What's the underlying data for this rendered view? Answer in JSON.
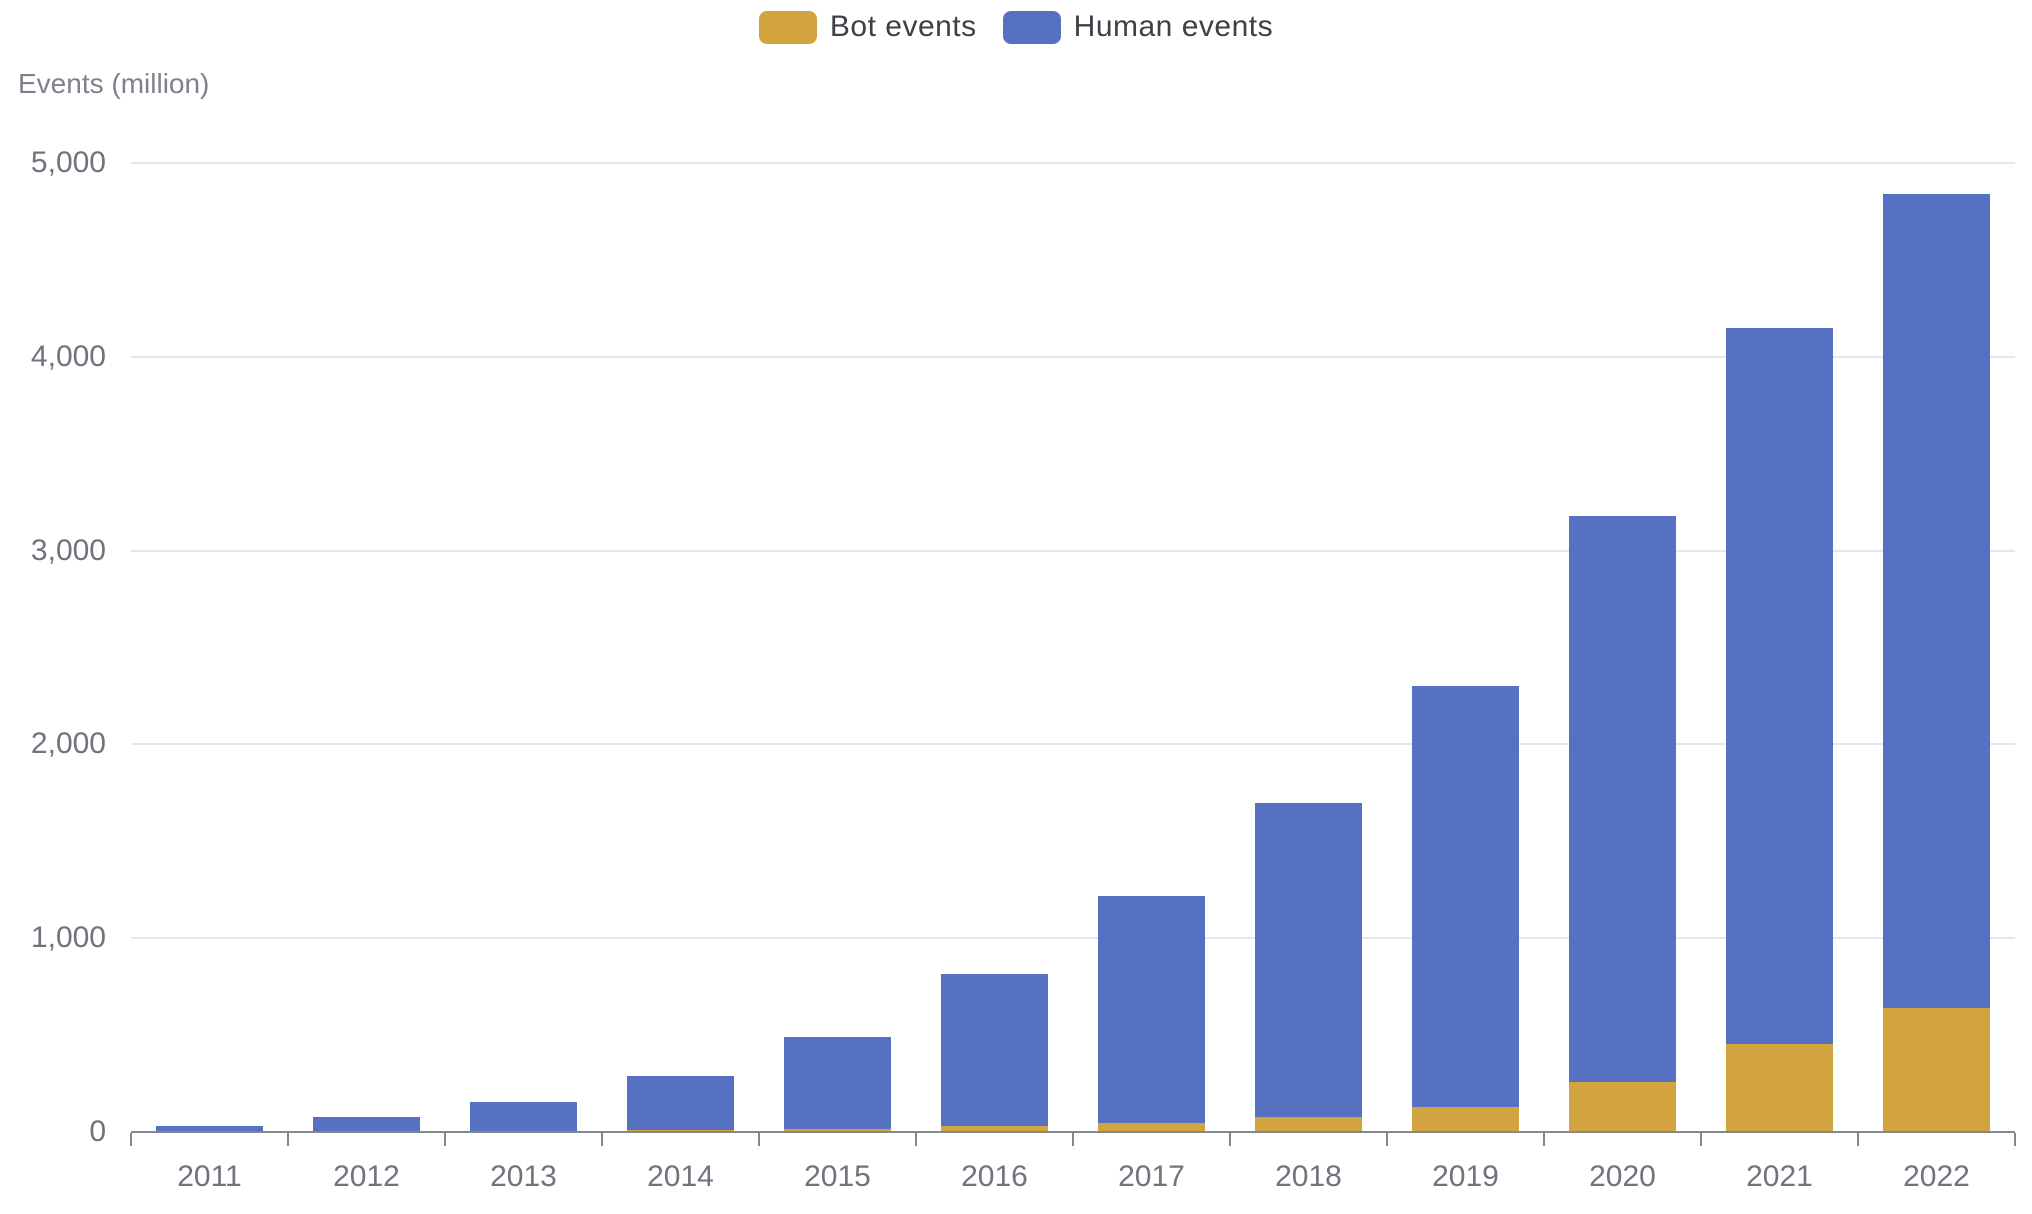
{
  "chart_data": {
    "type": "bar",
    "stacked": true,
    "title": "Events (million)",
    "ylabel": "Events (million)",
    "xlabel": "",
    "categories": [
      "2011",
      "2012",
      "2013",
      "2014",
      "2015",
      "2016",
      "2017",
      "2018",
      "2019",
      "2020",
      "2021",
      "2022"
    ],
    "series": [
      {
        "name": "Bot events",
        "color": "#d2a440",
        "values": [
          2,
          3,
          5,
          8,
          15,
          30,
          45,
          75,
          130,
          260,
          455,
          640
        ]
      },
      {
        "name": "Human events",
        "color": "#5671c2",
        "values": [
          28,
          72,
          150,
          282,
          475,
          785,
          1175,
          1625,
          2170,
          2920,
          3695,
          4200
        ]
      }
    ],
    "stack_totals": [
      30,
      75,
      155,
      290,
      490,
      815,
      1220,
      1700,
      2300,
      3180,
      4150,
      4840
    ],
    "ylim": [
      0,
      5000
    ],
    "yticks": [
      0,
      1000,
      2000,
      3000,
      4000,
      5000
    ],
    "ytick_labels": [
      "0",
      "1,000",
      "2,000",
      "3,000",
      "4,000",
      "5,000"
    ],
    "grid": true,
    "legend_position": "top-center"
  },
  "colors": {
    "grid": "#e3e7f3",
    "axis": "#84878e",
    "tick_label": "#6e737d",
    "legend_text": "#3d4046",
    "background": "#ffffff"
  }
}
